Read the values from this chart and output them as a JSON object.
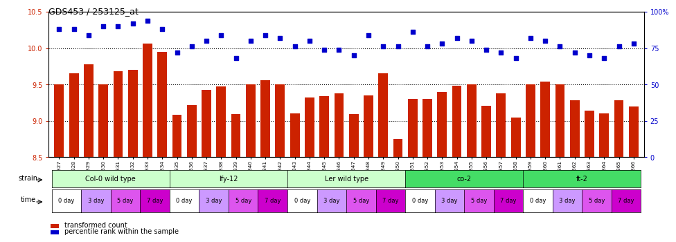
{
  "title": "GDS453 / 253125_at",
  "samples": [
    "GSM8827",
    "GSM8828",
    "GSM8829",
    "GSM8830",
    "GSM8831",
    "GSM8832",
    "GSM8833",
    "GSM8834",
    "GSM8835",
    "GSM8836",
    "GSM8837",
    "GSM8838",
    "GSM8839",
    "GSM8840",
    "GSM8841",
    "GSM8842",
    "GSM8843",
    "GSM8844",
    "GSM8845",
    "GSM8846",
    "GSM8847",
    "GSM8848",
    "GSM8849",
    "GSM8850",
    "GSM8851",
    "GSM8852",
    "GSM8853",
    "GSM8854",
    "GSM8855",
    "GSM8856",
    "GSM8857",
    "GSM8858",
    "GSM8859",
    "GSM8860",
    "GSM8861",
    "GSM8862",
    "GSM8863",
    "GSM8864",
    "GSM8865",
    "GSM8866"
  ],
  "bar_values": [
    9.5,
    9.65,
    9.78,
    9.5,
    9.68,
    9.7,
    10.06,
    9.95,
    9.08,
    9.22,
    9.43,
    9.47,
    9.09,
    9.5,
    9.56,
    9.5,
    9.1,
    9.32,
    9.34,
    9.38,
    9.09,
    9.35,
    9.65,
    8.75,
    9.3,
    9.3,
    9.4,
    9.48,
    9.5,
    9.21,
    9.38,
    9.05,
    9.5,
    9.54,
    9.5,
    9.28,
    9.14,
    9.1,
    9.28,
    9.2
  ],
  "percentile_values": [
    88,
    88,
    84,
    90,
    90,
    92,
    94,
    88,
    72,
    76,
    80,
    84,
    68,
    80,
    84,
    82,
    76,
    80,
    74,
    74,
    70,
    84,
    76,
    76,
    86,
    76,
    78,
    82,
    80,
    74,
    72,
    68,
    82,
    80,
    76,
    72,
    70,
    68,
    76,
    78
  ],
  "ylim_left": [
    8.5,
    10.5
  ],
  "ylim_right": [
    0,
    100
  ],
  "yticks_left": [
    8.5,
    9.0,
    9.5,
    10.0,
    10.5
  ],
  "yticks_right_vals": [
    0,
    25,
    50,
    75,
    100
  ],
  "yticks_right_labels": [
    "0",
    "25",
    "50",
    "75",
    "100%"
  ],
  "bar_color": "#cc2200",
  "scatter_color": "#0000cc",
  "background_color": "#ffffff",
  "grid_values": [
    9.0,
    9.5,
    10.0
  ],
  "strains": [
    {
      "label": "Col-0 wild type",
      "start": 0,
      "end": 8,
      "color": "#ccffcc"
    },
    {
      "label": "lfy-12",
      "start": 8,
      "end": 16,
      "color": "#ccffcc"
    },
    {
      "label": "Ler wild type",
      "start": 16,
      "end": 24,
      "color": "#ccffcc"
    },
    {
      "label": "co-2",
      "start": 24,
      "end": 32,
      "color": "#44dd66"
    },
    {
      "label": "ft-2",
      "start": 32,
      "end": 40,
      "color": "#44dd66"
    }
  ],
  "time_labels": [
    "0 day",
    "3 day",
    "5 day",
    "7 day"
  ],
  "time_colors": [
    "#ffffff",
    "#cc99ff",
    "#dd55ee",
    "#cc00cc"
  ],
  "legend_bar_label": "transformed count",
  "legend_scatter_label": "percentile rank within the sample"
}
